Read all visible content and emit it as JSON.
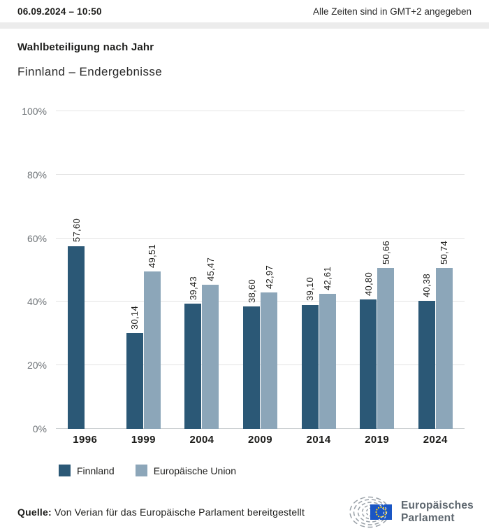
{
  "header": {
    "datetime": "06.09.2024 – 10:50",
    "timezone_note": "Alle Zeiten sind in GMT+2 angegeben"
  },
  "title": "Wahlbeteiligung nach Jahr",
  "subtitle": "Finnland – Endergebnisse",
  "chart_data": {
    "type": "bar",
    "title": "Wahlbeteiligung nach Jahr",
    "subtitle": "Finnland – Endergebnisse",
    "categories": [
      "1996",
      "1999",
      "2004",
      "2009",
      "2014",
      "2019",
      "2024"
    ],
    "series": [
      {
        "name": "Finnland",
        "color": "#2b5876",
        "values": [
          57.6,
          30.14,
          39.43,
          38.6,
          39.1,
          40.8,
          40.38
        ],
        "labels": [
          "57,60",
          "30,14",
          "39,43",
          "38,60",
          "39,10",
          "40,80",
          "40,38"
        ]
      },
      {
        "name": "Europäische Union",
        "color": "#8ca6b9",
        "values": [
          null,
          49.51,
          45.47,
          42.97,
          42.61,
          50.66,
          50.74
        ],
        "labels": [
          null,
          "49,51",
          "45,47",
          "42,97",
          "42,61",
          "50,66",
          "50,74"
        ]
      }
    ],
    "yticks": [
      "0%",
      "20%",
      "40%",
      "60%",
      "80%",
      "100%"
    ],
    "ytick_values": [
      0,
      20,
      40,
      60,
      80,
      100
    ],
    "ylim": [
      0,
      100
    ],
    "unit": "%",
    "grid": true,
    "legend_position": "bottom",
    "value_label_rotation": 90
  },
  "legend": {
    "items": [
      {
        "label": "Finnland",
        "color": "#2b5876"
      },
      {
        "label": "Europäische Union",
        "color": "#8ca6b9"
      }
    ]
  },
  "footer": {
    "source_label": "Quelle:",
    "source_text": " Von Verian für das Europäische Parlament bereitgestellt"
  },
  "logo": {
    "line1": "Europäisches",
    "line2": "Parlament"
  },
  "colors": {
    "finnland": "#2b5876",
    "eu": "#8ca6b9",
    "gridline": "#e4e4e4",
    "baseline": "#cdd1d4",
    "flag_blue": "#1a56c4",
    "star_yellow": "#ffd617"
  }
}
